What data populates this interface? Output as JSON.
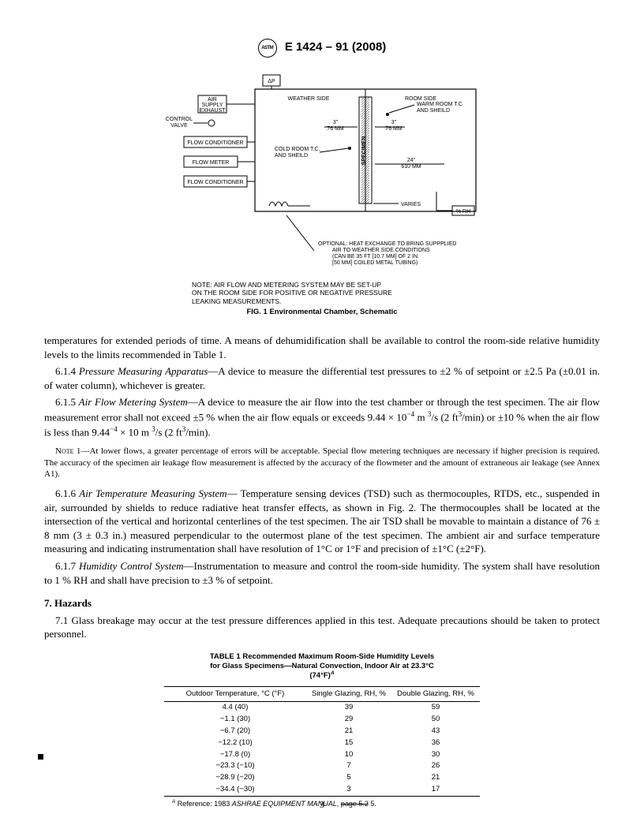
{
  "header": {
    "designation": "E 1424 – 91  (2008)"
  },
  "figure1": {
    "svg_labels": {
      "delta_p": "ΔP",
      "air_supply": "AIR\nSUPPLY\nEXHAUST",
      "control_valve": "CONTROL\nVALVE",
      "flow_cond_1": "FLOW CONDITIONER",
      "flow_meter": "FLOW METER",
      "flow_cond_2": "FLOW CONDITIONER",
      "weather_side": "WEATHER SIDE",
      "room_side": "ROOM SIDE",
      "warm_room": "WARM ROOM T.C\nAND SHEILD",
      "dim_3_76": "3\"\n76 MM",
      "specimen": "SPECIMEN",
      "cold_room": "COLD ROOM T.C.\nAND SHEILD",
      "dim_24_610": "24\"\n610 MM",
      "varies": "VARIES",
      "rh": "% RH",
      "optional": "OPTIONAL: HEAT EXCHANGE TO BRING SUPPPLIED\nAIR TO WEATHER SIDE CONDITIONS\n(CAN BE 35 FT [10.7 MM] OF 2 IN.\n[50 MM] COILED METAL TUBING)"
    },
    "note": "NOTE:  AIR FLOW AND METERING SYSTEM MAY BE SET-UP\nON THE ROOM SIDE FOR POSITIVE OR NEGATIVE PRESSURE\nLEAKING MEASUREMENTS.",
    "caption": "FIG. 1 Environmental Chamber, Schematic"
  },
  "paragraphs": {
    "p_intro": "temperatures for extended periods of time. A means of dehumidification shall be available to control the room-side relative humidity levels to the limits recommended in Table 1.",
    "p_614_label": "6.1.4 ",
    "p_614_italic": "Pressure Measuring Apparatus",
    "p_614_text": "—A device to measure the differential test pressures to ±2 % of setpoint or ±2.5 Pa (±0.01 in. of water column), whichever is greater.",
    "p_615_label": "6.1.5 ",
    "p_615_italic": "Air Flow Metering System",
    "p_615_text_a": "—A device to measure the air flow into the test chamber or through the test specimen. The air flow measurement error shall not exceed ±5 % when the air flow equals or exceeds 9.44 × 10",
    "p_615_exp1": "−4",
    "p_615_text_b": " m ",
    "p_615_exp2": "3",
    "p_615_text_c": "/s (2 ft",
    "p_615_exp3": "3",
    "p_615_text_d": "/min) or ±10 % when the air flow is less than 9.44",
    "p_615_exp4": "−4",
    "p_615_text_e": " × 10 m ",
    "p_615_exp5": "3",
    "p_615_text_f": "/s (2 ft",
    "p_615_exp6": "3",
    "p_615_text_g": "/min).",
    "note1_label": "Note 1",
    "note1_text": "—At lower flows, a greater percentage of errors will be acceptable. Special flow metering techniques are necessary if higher precision is required. The accuracy of the specimen air leakage flow measurement is affected by the accuracy of the flowmeter and the amount of extraneous air leakage (see Annex A1).",
    "p_616_label": "6.1.6 ",
    "p_616_italic": "Air Temperature Measuring System",
    "p_616_text": "— Temperature sensing devices (TSD) such as thermocouples, RTDS, etc., suspended in air, surrounded by shields to reduce radiative heat transfer effects, as shown in Fig. 2. The thermocouples shall be located at the intersection of the vertical and horizontal centerlines of the test specimen. The air TSD shall be movable to maintain a distance of 76 ± 8 mm (3 ± 0.3 in.) measured perpendicular to the outermost plane of the test specimen. The ambient air and surface temperature measuring and indicating instrumentation shall have resolution of 1°C or 1°F and precision of ±1°C (±2°F).",
    "p_617_label": "6.1.7 ",
    "p_617_italic": "Humidity Control System",
    "p_617_text": "—Instrumentation to measure and control the room-side humidity. The system shall have resolution to 1 % RH and shall have precision to ±3 % of setpoint.",
    "sec7_head": "7.  Hazards",
    "p_71": "7.1  Glass breakage may occur at the test pressure differences applied in this test. Adequate precautions should be taken to protect personnel."
  },
  "table1": {
    "title_line1": "TABLE 1  Recommended Maximum Room-Side Humidity Levels",
    "title_line2": "for Glass Specimens—Natural Convection, Indoor Air at 23.3°C",
    "title_line3": "(74°F)",
    "title_sup": "A",
    "columns": [
      "Outdoor Temperature, °C (°F)",
      "Single Glazing, RH, %",
      "Double Glazing, RH, %"
    ],
    "rows": [
      [
        "4.4 (40)",
        "39",
        "59"
      ],
      [
        "−1.1 (30)",
        "29",
        "50"
      ],
      [
        "−6.7 (20)",
        "21",
        "43"
      ],
      [
        "−12.2 (10)",
        "15",
        "36"
      ],
      [
        "−17.8 (0)",
        "10",
        "30"
      ],
      [
        "−23.3 (−10)",
        "7",
        "26"
      ],
      [
        "−28.9 (−20)",
        "5",
        "21"
      ],
      [
        "−34.4 (−30)",
        "3",
        "17"
      ]
    ],
    "footnote_sup": "A",
    "footnote_text_a": " Reference: 1983 ",
    "footnote_italic": "ASHRAE EQUIPMENT MANUAL",
    "footnote_text_b": ", page 5.2 5."
  },
  "page_number": "3"
}
